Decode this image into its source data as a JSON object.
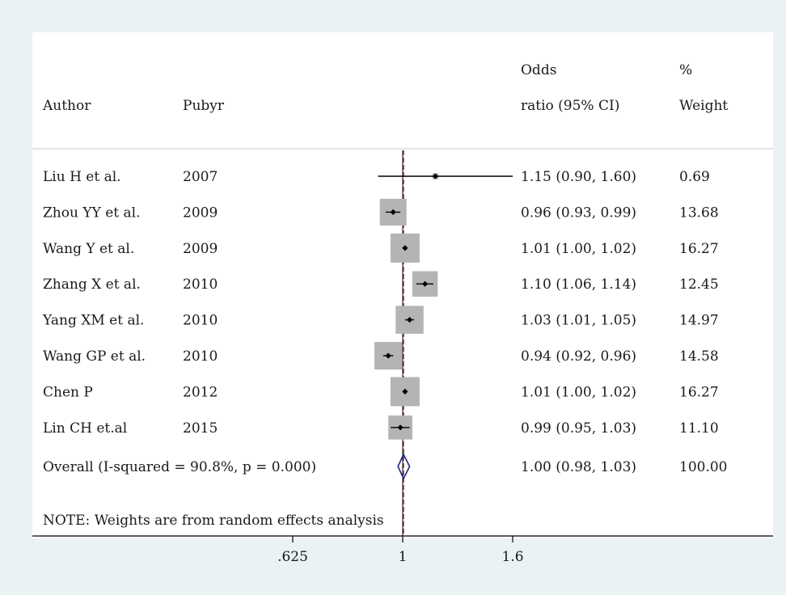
{
  "chart_data": {
    "type": "forest",
    "headers": {
      "author": "Author",
      "pubyr": "Pubyr",
      "or_line1": "Odds",
      "or_line2": "ratio (95% CI)",
      "weight_line1": "%",
      "weight_line2": "Weight"
    },
    "studies": [
      {
        "author": "Liu H et al.",
        "year": "2007",
        "or": 1.15,
        "lo": 0.9,
        "hi": 1.6,
        "ci_text": "1.15 (0.90, 1.60)",
        "weight": 0.69,
        "weight_text": "0.69"
      },
      {
        "author": "Zhou YY et al.",
        "year": "2009",
        "or": 0.96,
        "lo": 0.93,
        "hi": 0.99,
        "ci_text": "0.96 (0.93, 0.99)",
        "weight": 13.68,
        "weight_text": "13.68"
      },
      {
        "author": "Wang Y et al.",
        "year": "2009",
        "or": 1.01,
        "lo": 1.0,
        "hi": 1.02,
        "ci_text": "1.01 (1.00, 1.02)",
        "weight": 16.27,
        "weight_text": "16.27"
      },
      {
        "author": "Zhang X et al.",
        "year": "2010",
        "or": 1.1,
        "lo": 1.06,
        "hi": 1.14,
        "ci_text": "1.10 (1.06, 1.14)",
        "weight": 12.45,
        "weight_text": "12.45"
      },
      {
        "author": "Yang XM et al.",
        "year": "2010",
        "or": 1.03,
        "lo": 1.01,
        "hi": 1.05,
        "ci_text": "1.03 (1.01, 1.05)",
        "weight": 14.97,
        "weight_text": "14.97"
      },
      {
        "author": "Wang GP et al.",
        "year": "2010",
        "or": 0.94,
        "lo": 0.92,
        "hi": 0.96,
        "ci_text": "0.94 (0.92, 0.96)",
        "weight": 14.58,
        "weight_text": "14.58"
      },
      {
        "author": "Chen P",
        "year": "2012",
        "or": 1.01,
        "lo": 1.0,
        "hi": 1.02,
        "ci_text": "1.01 (1.00, 1.02)",
        "weight": 16.27,
        "weight_text": "16.27"
      },
      {
        "author": "Lin CH et.al",
        "year": "2015",
        "or": 0.99,
        "lo": 0.95,
        "hi": 1.03,
        "ci_text": "0.99 (0.95, 1.03)",
        "weight": 11.1,
        "weight_text": "11.10"
      }
    ],
    "overall": {
      "label": "Overall  (I-squared = 90.8%, p = 0.000)",
      "or": 1.0,
      "lo": 0.98,
      "hi": 1.03,
      "ci_text": "1.00 (0.98, 1.03)",
      "weight_text": "100.00"
    },
    "note": "NOTE: Weights are from random effects analysis",
    "x_ticks": [
      {
        "value": 0.625,
        "label": ".625"
      },
      {
        "value": 1,
        "label": "1"
      },
      {
        "value": 1.6,
        "label": "1.6"
      }
    ],
    "x_scale": "log",
    "xlim": [
      0.625,
      1.6
    ],
    "colors": {
      "background": "#eaf2f3",
      "panel": "#ffffff",
      "weight_box": "#b4b4b4",
      "ci_line": "#000000",
      "point": "#000000",
      "diamond": "#1c2a80",
      "overall_line": "#8b2a2a",
      "null_line": "#000000",
      "divider": "#c8c8c8"
    }
  }
}
